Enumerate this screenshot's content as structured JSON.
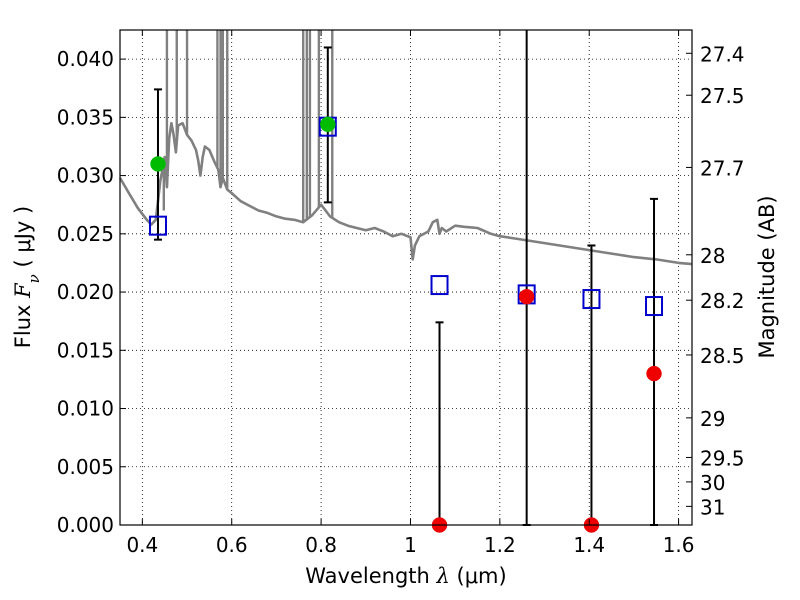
{
  "chart_data": {
    "type": "scatter",
    "xlabel": {
      "prefix": "Wavelength  ",
      "symbol": "λ",
      "unit": " (μm)"
    },
    "ylabel": {
      "prefix": "Flux  ",
      "symbol": "F",
      "sub": "ν",
      "unit": "  ( μJy )"
    },
    "ylabel_right": "Magnitude (AB)",
    "xlim": [
      0.35,
      1.63
    ],
    "ylim": [
      0,
      0.0425
    ],
    "grid": true,
    "x_ticks": [
      0.4,
      0.6,
      0.8,
      1.0,
      1.2,
      1.4,
      1.6
    ],
    "x_tick_labels": [
      "0.4",
      "0.6",
      "0.8",
      "1",
      "1.2",
      "1.4",
      "1.6"
    ],
    "y_ticks": [
      0,
      0.005,
      0.01,
      0.015,
      0.02,
      0.025,
      0.03,
      0.035,
      0.04
    ],
    "y_tick_labels": [
      "0.000",
      "0.005",
      "0.010",
      "0.015",
      "0.020",
      "0.025",
      "0.030",
      "0.035",
      "0.040"
    ],
    "mag_ticks": [
      {
        "label": "27.4",
        "flux": 0.0405
      },
      {
        "label": "27.5",
        "flux": 0.0369
      },
      {
        "label": "27.7",
        "flux": 0.0307
      },
      {
        "label": "28",
        "flux": 0.0232
      },
      {
        "label": "28.2",
        "flux": 0.0193
      },
      {
        "label": "28.5",
        "flux": 0.0146
      },
      {
        "label": "29",
        "flux": 0.0092
      },
      {
        "label": "29.5",
        "flux": 0.0058
      },
      {
        "label": "30",
        "flux": 0.0037
      },
      {
        "label": "31",
        "flux": 0.0016
      }
    ],
    "model_spectrum": {
      "color": "#808080",
      "points": [
        [
          0.35,
          0.0298
        ],
        [
          0.37,
          0.0285
        ],
        [
          0.39,
          0.0272
        ],
        [
          0.41,
          0.0262
        ],
        [
          0.42,
          0.0258
        ],
        [
          0.43,
          0.0262
        ],
        [
          0.435,
          0.0278
        ],
        [
          0.44,
          0.0295
        ],
        [
          0.445,
          0.0305
        ],
        [
          0.45,
          0.0316
        ],
        [
          0.455,
          0.029
        ],
        [
          0.46,
          0.0332
        ],
        [
          0.465,
          0.0345
        ],
        [
          0.47,
          0.0335
        ],
        [
          0.475,
          0.032
        ],
        [
          0.48,
          0.0343
        ],
        [
          0.49,
          0.0345
        ],
        [
          0.5,
          0.0335
        ],
        [
          0.51,
          0.033
        ],
        [
          0.52,
          0.0322
        ],
        [
          0.525,
          0.0313
        ],
        [
          0.53,
          0.03
        ],
        [
          0.535,
          0.0316
        ],
        [
          0.54,
          0.0325
        ],
        [
          0.55,
          0.0322
        ],
        [
          0.56,
          0.0313
        ],
        [
          0.57,
          0.0305
        ],
        [
          0.575,
          0.029
        ],
        [
          0.58,
          0.0298
        ],
        [
          0.59,
          0.0288
        ],
        [
          0.6,
          0.0285
        ],
        [
          0.62,
          0.0278
        ],
        [
          0.64,
          0.0274
        ],
        [
          0.66,
          0.027
        ],
        [
          0.68,
          0.0268
        ],
        [
          0.7,
          0.0265
        ],
        [
          0.72,
          0.0263
        ],
        [
          0.74,
          0.0262
        ],
        [
          0.76,
          0.026
        ],
        [
          0.78,
          0.0266
        ],
        [
          0.8,
          0.0275
        ],
        [
          0.82,
          0.0265
        ],
        [
          0.84,
          0.026
        ],
        [
          0.86,
          0.0257
        ],
        [
          0.88,
          0.0255
        ],
        [
          0.9,
          0.0253
        ],
        [
          0.92,
          0.0255
        ],
        [
          0.94,
          0.0252
        ],
        [
          0.96,
          0.0248
        ],
        [
          0.98,
          0.025
        ],
        [
          1.0,
          0.0247
        ],
        [
          1.005,
          0.0228
        ],
        [
          1.01,
          0.024
        ],
        [
          1.02,
          0.0248
        ],
        [
          1.04,
          0.0252
        ],
        [
          1.05,
          0.026
        ],
        [
          1.06,
          0.0262
        ],
        [
          1.065,
          0.025
        ],
        [
          1.07,
          0.0255
        ],
        [
          1.08,
          0.0252
        ],
        [
          1.1,
          0.0257
        ],
        [
          1.12,
          0.0256
        ],
        [
          1.15,
          0.0255
        ],
        [
          1.18,
          0.025
        ],
        [
          1.2,
          0.0248
        ],
        [
          1.25,
          0.0245
        ],
        [
          1.3,
          0.0242
        ],
        [
          1.35,
          0.0239
        ],
        [
          1.4,
          0.0236
        ],
        [
          1.45,
          0.0233
        ],
        [
          1.5,
          0.023
        ],
        [
          1.55,
          0.0228
        ],
        [
          1.6,
          0.0225
        ],
        [
          1.63,
          0.0224
        ]
      ],
      "spikes": [
        {
          "x": 0.448,
          "top": 0.027
        },
        {
          "x": 0.455,
          "top": 0.0425
        },
        {
          "x": 0.477,
          "top": 0.0425
        },
        {
          "x": 0.5,
          "top": 0.0425
        },
        {
          "x": 0.568,
          "top": 0.0425
        },
        {
          "x": 0.575,
          "top": 0.0425
        },
        {
          "x": 0.58,
          "top": 0.0425
        },
        {
          "x": 0.59,
          "top": 0.0425
        },
        {
          "x": 0.76,
          "top": 0.0425
        },
        {
          "x": 0.768,
          "top": 0.0425
        },
        {
          "x": 0.775,
          "top": 0.0425
        },
        {
          "x": 0.795,
          "top": 0.0425
        },
        {
          "x": 0.825,
          "top": 0.0425
        }
      ]
    },
    "series": [
      {
        "marker": "square",
        "color": "#0000cc",
        "points": [
          {
            "x": 0.435,
            "y": 0.0257
          },
          {
            "x": 0.815,
            "y": 0.0342
          },
          {
            "x": 1.065,
            "y": 0.0206
          },
          {
            "x": 1.26,
            "y": 0.0198
          },
          {
            "x": 1.405,
            "y": 0.0194
          },
          {
            "x": 1.545,
            "y": 0.0188
          }
        ]
      },
      {
        "marker": "circle",
        "color": "#00bb00",
        "points": [
          {
            "x": 0.435,
            "y": 0.031,
            "err_low": 0.0245,
            "err_high": 0.0374
          },
          {
            "x": 0.815,
            "y": 0.0344,
            "err_low": 0.0277,
            "err_high": 0.041
          }
        ]
      },
      {
        "marker": "circle",
        "color": "#ee0000",
        "points": [
          {
            "x": 1.065,
            "y": 0.0,
            "err_low": 0.0,
            "err_high": 0.0174
          },
          {
            "x": 1.26,
            "y": 0.0196,
            "err_low": 0.0,
            "err_high": 0.0425
          },
          {
            "x": 1.405,
            "y": 0.0,
            "err_low": 0.0,
            "err_high": 0.024
          },
          {
            "x": 1.545,
            "y": 0.013,
            "err_low": 0.0,
            "err_high": 0.028
          }
        ]
      }
    ]
  }
}
